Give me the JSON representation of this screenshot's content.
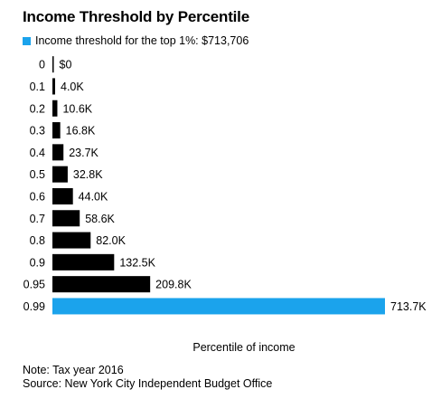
{
  "chart_data": {
    "type": "bar",
    "orientation": "horizontal",
    "title": "Income Threshold by Percentile",
    "legend": {
      "label": "Income threshold for the top 1%: $713,706",
      "color": "#1ba3ec"
    },
    "xlabel": "Percentile of income",
    "categories": [
      "0",
      "0.1",
      "0.2",
      "0.3",
      "0.4",
      "0.5",
      "0.6",
      "0.7",
      "0.8",
      "0.9",
      "0.95",
      "0.99"
    ],
    "values": [
      0,
      4000,
      10600,
      16800,
      23700,
      32800,
      44000,
      58600,
      82000,
      132500,
      209800,
      713700
    ],
    "value_labels": [
      "$0",
      "4.0K",
      "10.6K",
      "16.8K",
      "23.7K",
      "32.8K",
      "44.0K",
      "58.6K",
      "82.0K",
      "132.5K",
      "209.8K",
      "713.7K"
    ],
    "highlight_index": 11,
    "colors": {
      "bar": "#000000",
      "highlight": "#1ba3ec"
    },
    "xlim": [
      0,
      713700
    ]
  },
  "footer": {
    "note": "Note: Tax year 2016",
    "source": "Source: New York City Independent Budget Office"
  }
}
